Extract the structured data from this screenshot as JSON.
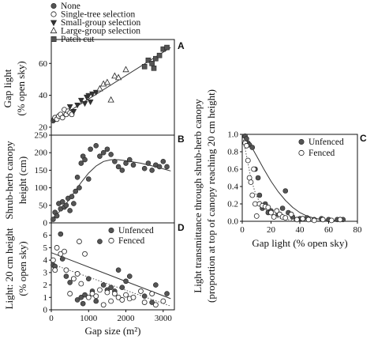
{
  "chart_data": [
    {
      "id": "A",
      "type": "scatter",
      "panel_label": "A",
      "xlabel": "",
      "ylabel_lines": [
        "Gap light",
        "(% open sky)"
      ],
      "xlim": [
        0,
        3300
      ],
      "ylim": [
        15,
        75
      ],
      "yticks": [
        20,
        40,
        60
      ],
      "legend": [
        "None",
        "Single-tree selection",
        "Small-group selection",
        "Large-group selection",
        "Patch cut"
      ],
      "series": [
        {
          "name": "None",
          "marker": "filled-circle",
          "points": [
            [
              50,
              24
            ],
            [
              80,
              25
            ]
          ]
        },
        {
          "name": "Single-tree selection",
          "marker": "open-circle",
          "points": [
            [
              100,
              26
            ],
            [
              150,
              25
            ],
            [
              200,
              27
            ],
            [
              250,
              28
            ],
            [
              300,
              26
            ],
            [
              350,
              31
            ],
            [
              400,
              28
            ],
            [
              450,
              30
            ],
            [
              500,
              29
            ],
            [
              550,
              28
            ]
          ]
        },
        {
          "name": "Small-group selection",
          "marker": "filled-triangle-down",
          "points": [
            [
              500,
              33
            ],
            [
              600,
              30
            ],
            [
              700,
              34
            ],
            [
              800,
              37
            ],
            [
              900,
              35
            ],
            [
              950,
              39
            ],
            [
              1000,
              40
            ],
            [
              1050,
              36
            ],
            [
              1100,
              41
            ],
            [
              1200,
              42
            ]
          ]
        },
        {
          "name": "Large-group selection",
          "marker": "open-triangle-up",
          "points": [
            [
              1300,
              44
            ],
            [
              1400,
              47
            ],
            [
              1500,
              48
            ],
            [
              1600,
              37
            ],
            [
              1700,
              52
            ],
            [
              1800,
              51
            ],
            [
              2000,
              56
            ]
          ]
        },
        {
          "name": "Patch cut",
          "marker": "filled-square",
          "points": [
            [
              2500,
              58
            ],
            [
              2600,
              62
            ],
            [
              2700,
              60
            ],
            [
              2800,
              63
            ],
            [
              2900,
              65
            ],
            [
              3000,
              69
            ],
            [
              3100,
              70
            ],
            [
              2750,
              57
            ]
          ]
        }
      ],
      "fit": {
        "style": "solid",
        "points": [
          [
            0,
            23
          ],
          [
            3200,
            70
          ]
        ]
      }
    },
    {
      "id": "B",
      "type": "scatter",
      "panel_label": "B",
      "xlabel": "",
      "ylabel_lines": [
        "Shrub-herb canopy",
        "height (cm)"
      ],
      "xlim": [
        0,
        3300
      ],
      "ylim": [
        0,
        250
      ],
      "yticks": [
        0,
        50,
        100,
        150,
        200,
        250
      ],
      "series": [
        {
          "name": "points",
          "marker": "filled-circle",
          "points": [
            [
              50,
              10
            ],
            [
              100,
              30
            ],
            [
              150,
              20
            ],
            [
              200,
              55
            ],
            [
              250,
              40
            ],
            [
              300,
              60
            ],
            [
              350,
              45
            ],
            [
              400,
              50
            ],
            [
              450,
              70
            ],
            [
              500,
              35
            ],
            [
              550,
              75
            ],
            [
              600,
              55
            ],
            [
              650,
              90
            ],
            [
              700,
              130
            ],
            [
              750,
              100
            ],
            [
              800,
              170
            ],
            [
              850,
              190
            ],
            [
              900,
              180
            ],
            [
              1000,
              125
            ],
            [
              1050,
              210
            ],
            [
              1200,
              220
            ],
            [
              1300,
              190
            ],
            [
              1400,
              200
            ],
            [
              1500,
              210
            ],
            [
              1600,
              195
            ],
            [
              1700,
              175
            ],
            [
              1800,
              160
            ],
            [
              1900,
              150
            ],
            [
              2000,
              170
            ],
            [
              2100,
              180
            ],
            [
              2200,
              165
            ],
            [
              2500,
              155
            ],
            [
              2600,
              170
            ],
            [
              2700,
              150
            ],
            [
              2800,
              165
            ],
            [
              2900,
              160
            ],
            [
              3000,
              175
            ],
            [
              3100,
              160
            ]
          ]
        }
      ],
      "fit": {
        "style": "solid",
        "points": [
          [
            0,
            10
          ],
          [
            200,
            30
          ],
          [
            400,
            55
          ],
          [
            600,
            85
          ],
          [
            800,
            115
          ],
          [
            1000,
            142
          ],
          [
            1200,
            162
          ],
          [
            1400,
            175
          ],
          [
            1600,
            180
          ],
          [
            1800,
            180
          ],
          [
            2000,
            177
          ],
          [
            2400,
            170
          ],
          [
            2800,
            160
          ],
          [
            3200,
            148
          ]
        ]
      }
    },
    {
      "id": "D",
      "type": "scatter",
      "panel_label": "D",
      "xlabel": "Gap size (m²)",
      "ylabel_lines": [
        "Light: 20 cm height",
        "(% open sky)"
      ],
      "xlim": [
        0,
        3300
      ],
      "ylim": [
        0,
        7
      ],
      "xticks": [
        0,
        1000,
        2000,
        3000
      ],
      "yticks": [
        0,
        1,
        2,
        3,
        4,
        5,
        6
      ],
      "legend": [
        "Unfenced",
        "Fenced"
      ],
      "series": [
        {
          "name": "Unfenced",
          "marker": "filled-circle",
          "points": [
            [
              50,
              3.6
            ],
            [
              100,
              3.5
            ],
            [
              250,
              6.1
            ],
            [
              300,
              4.1
            ],
            [
              400,
              2.7
            ],
            [
              500,
              2.2
            ],
            [
              600,
              2.5
            ],
            [
              700,
              0.8
            ],
            [
              800,
              1.0
            ],
            [
              850,
              0.5
            ],
            [
              900,
              1.2
            ],
            [
              1000,
              2.5
            ],
            [
              1100,
              1.5
            ],
            [
              1200,
              0.7
            ],
            [
              1300,
              5.5
            ],
            [
              1400,
              2.0
            ],
            [
              1500,
              1.6
            ],
            [
              1600,
              1.8
            ],
            [
              1700,
              1.5
            ],
            [
              1800,
              3.2
            ],
            [
              1900,
              1.8
            ],
            [
              2000,
              2.3
            ],
            [
              2100,
              2.7
            ],
            [
              2500,
              1.1
            ],
            [
              2700,
              0.6
            ],
            [
              2800,
              2.0
            ],
            [
              3100,
              1.3
            ]
          ]
        },
        {
          "name": "Fenced",
          "marker": "open-circle",
          "points": [
            [
              50,
              4.0
            ],
            [
              100,
              3.2
            ],
            [
              150,
              5.0
            ],
            [
              250,
              4.5
            ],
            [
              350,
              4.7
            ],
            [
              400,
              3.2
            ],
            [
              500,
              1.3
            ],
            [
              600,
              2.5
            ],
            [
              700,
              2.9
            ],
            [
              750,
              5.5
            ],
            [
              800,
              2.1
            ],
            [
              900,
              4.5
            ],
            [
              1000,
              1.0
            ],
            [
              1100,
              1.3
            ],
            [
              1200,
              1.1
            ],
            [
              1300,
              1.6
            ],
            [
              1400,
              0.4
            ],
            [
              1500,
              1.4
            ],
            [
              1600,
              0.7
            ],
            [
              1700,
              1.3
            ],
            [
              1800,
              1.0
            ],
            [
              1900,
              0.8
            ],
            [
              2000,
              1.2
            ],
            [
              2100,
              0.9
            ],
            [
              2200,
              1.0
            ],
            [
              2400,
              1.5
            ],
            [
              2500,
              0.6
            ],
            [
              2700,
              1.3
            ],
            [
              2800,
              0.4
            ],
            [
              3000,
              0.7
            ]
          ]
        }
      ],
      "fits": [
        {
          "style": "solid",
          "points": [
            [
              0,
              4.6
            ],
            [
              3200,
              0.9
            ]
          ]
        },
        {
          "style": "dotted",
          "points": [
            [
              0,
              3.7
            ],
            [
              3200,
              0.3
            ]
          ]
        }
      ]
    },
    {
      "id": "C",
      "type": "scatter",
      "panel_label": "C",
      "xlabel": "Gap light (% open sky)",
      "ylabel_lines": [
        "Light transmittance through shrub-herb canopy",
        "(proportion at top of canopy reaching 20 cm height)"
      ],
      "xlim": [
        0,
        80
      ],
      "ylim": [
        0,
        1.0
      ],
      "xticks": [
        0,
        20,
        40,
        60,
        80
      ],
      "yticks": [
        0,
        0.2,
        0.4,
        0.6,
        0.8,
        1.0
      ],
      "ytick_labels": [
        "0.0",
        "0.2",
        "0.4",
        "0.6",
        "0.8",
        "1.0"
      ],
      "legend": [
        "Unfenced",
        "Fenced"
      ],
      "series": [
        {
          "name": "Unfenced",
          "marker": "filled-circle",
          "points": [
            [
              2,
              0.98
            ],
            [
              3,
              0.95
            ],
            [
              4,
              0.9
            ],
            [
              5,
              0.88
            ],
            [
              7,
              0.85
            ],
            [
              9,
              0.6
            ],
            [
              11,
              0.5
            ],
            [
              12,
              0.3
            ],
            [
              14,
              0.15
            ],
            [
              16,
              0.2
            ],
            [
              18,
              0.1
            ],
            [
              20,
              0.12
            ],
            [
              25,
              0.08
            ],
            [
              28,
              0.15
            ],
            [
              30,
              0.35
            ],
            [
              32,
              0.1
            ],
            [
              35,
              0.05
            ],
            [
              40,
              0.03
            ],
            [
              45,
              0.04
            ],
            [
              50,
              0.02
            ],
            [
              55,
              0.03
            ],
            [
              60,
              0.02
            ],
            [
              66,
              0.02
            ],
            [
              70,
              0.02
            ]
          ]
        },
        {
          "name": "Fenced",
          "marker": "open-circle",
          "points": [
            [
              2,
              0.9
            ],
            [
              3,
              0.87
            ],
            [
              4,
              0.7
            ],
            [
              5,
              0.5
            ],
            [
              6,
              0.45
            ],
            [
              7,
              0.3
            ],
            [
              8,
              0.6
            ],
            [
              9,
              0.2
            ],
            [
              10,
              0.06
            ],
            [
              12,
              0.2
            ],
            [
              14,
              0.18
            ],
            [
              16,
              0.17
            ],
            [
              18,
              0.16
            ],
            [
              20,
              0.1
            ],
            [
              22,
              0.05
            ],
            [
              24,
              0.12
            ],
            [
              26,
              0.08
            ],
            [
              28,
              0.05
            ],
            [
              30,
              0.04
            ],
            [
              34,
              0.08
            ],
            [
              38,
              0.02
            ],
            [
              42,
              0.03
            ],
            [
              46,
              0.02
            ],
            [
              50,
              0.01
            ],
            [
              56,
              0.02
            ],
            [
              62,
              0.01
            ],
            [
              68,
              0.02
            ]
          ]
        }
      ],
      "fits": [
        {
          "style": "solid",
          "points": [
            [
              0,
              1.0
            ],
            [
              5,
              0.9
            ],
            [
              10,
              0.75
            ],
            [
              15,
              0.6
            ],
            [
              20,
              0.46
            ],
            [
              25,
              0.34
            ],
            [
              30,
              0.24
            ],
            [
              35,
              0.16
            ],
            [
              40,
              0.1
            ],
            [
              45,
              0.06
            ],
            [
              50,
              0.035
            ],
            [
              55,
              0.02
            ],
            [
              60,
              0.012
            ],
            [
              66,
              0.005
            ]
          ]
        },
        {
          "style": "dotted",
          "points": [
            [
              0,
              1.0
            ],
            [
              3,
              0.75
            ],
            [
              6,
              0.5
            ],
            [
              9,
              0.33
            ],
            [
              12,
              0.22
            ],
            [
              15,
              0.15
            ],
            [
              20,
              0.08
            ],
            [
              25,
              0.04
            ],
            [
              30,
              0.02
            ],
            [
              40,
              0.008
            ],
            [
              60,
              0.002
            ]
          ]
        }
      ]
    }
  ]
}
